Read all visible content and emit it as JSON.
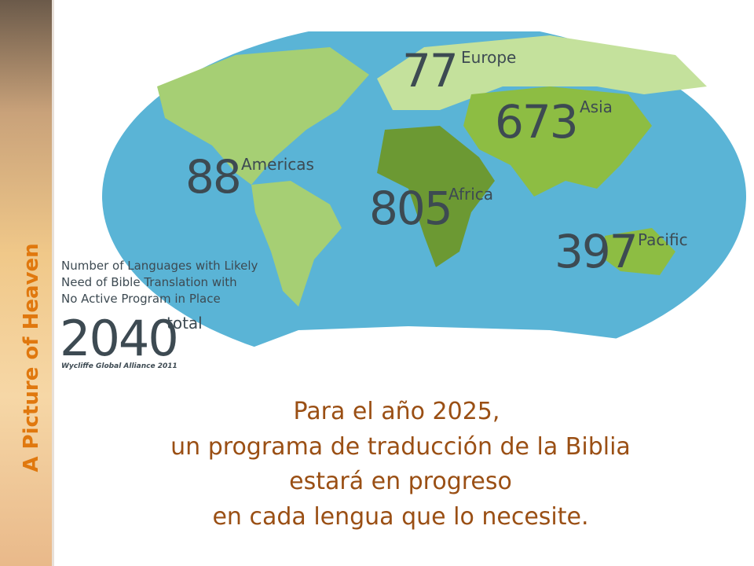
{
  "sidebar": {
    "title": "A Picture of Heaven"
  },
  "map": {
    "regions": [
      {
        "value": "77",
        "label": "Europe"
      },
      {
        "value": "673",
        "label": "Asia"
      },
      {
        "value": "88",
        "label": "Americas"
      },
      {
        "value": "805",
        "label": "Africa"
      },
      {
        "value": "397",
        "label": "Pacific"
      }
    ],
    "legend": {
      "lines": [
        "Number of Languages with Likely",
        "Need of Bible Translation with",
        "No Active Program in Place"
      ],
      "total": "2040",
      "total_label": "total",
      "source": "Wycliffe Global Alliance 2011"
    }
  },
  "caption": {
    "lines": [
      "Para el año 2025,",
      "un programa de traducción de la Biblia",
      "estará en progreso",
      "en cada lengua que lo necesite."
    ]
  }
}
